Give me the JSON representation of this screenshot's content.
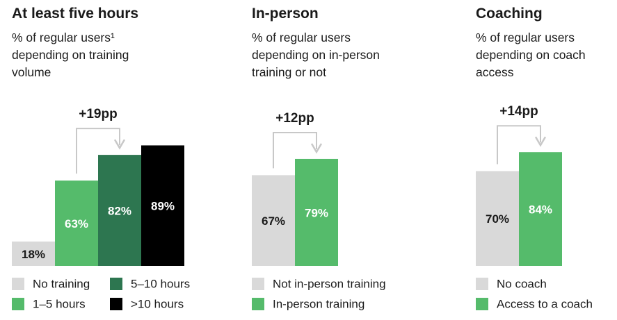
{
  "chart_data": [
    {
      "type": "bar",
      "title": "At least five hours",
      "subtitle": "% of regular users¹ depending on training volume",
      "categories": [
        "No training",
        "1–5 hours",
        "5–10 hours",
        ">10 hours"
      ],
      "values": [
        18,
        63,
        82,
        89
      ],
      "value_labels": [
        "18%",
        "63%",
        "82%",
        "89%"
      ],
      "colors": [
        "#d9d9d9",
        "#55bb6b",
        "#2d7650",
        "#000000"
      ],
      "annotation": "+19pp"
    },
    {
      "type": "bar",
      "title": "In-person",
      "subtitle": "% of regular users depending on in-person training or not",
      "categories": [
        "Not in-person training",
        "In-person training"
      ],
      "values": [
        67,
        79
      ],
      "value_labels": [
        "67%",
        "79%"
      ],
      "colors": [
        "#d9d9d9",
        "#55bb6b"
      ],
      "annotation": "+12pp"
    },
    {
      "type": "bar",
      "title": "Coaching",
      "subtitle": "% of regular users depending on coach access",
      "categories": [
        "No coach",
        "Access to a coach"
      ],
      "values": [
        70,
        84
      ],
      "value_labels": [
        "70%",
        "84%"
      ],
      "colors": [
        "#d9d9d9",
        "#55bb6b"
      ],
      "annotation": "+14pp"
    }
  ]
}
